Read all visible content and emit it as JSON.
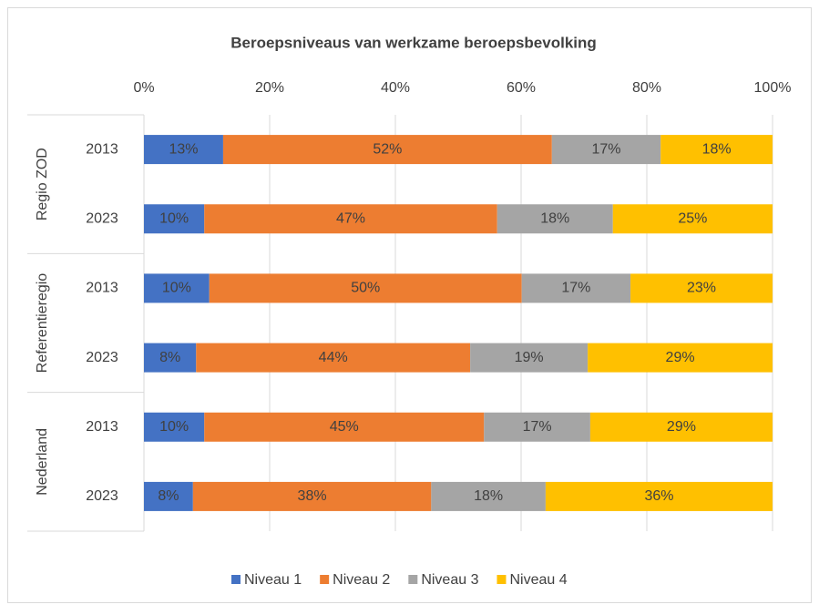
{
  "chart_data": {
    "type": "stacked_barh_percent",
    "title": "Beroepsniveaus van werkzame beroepsbevolking",
    "groups": [
      "Regio ZOD",
      "Referentieregio",
      "Nederland"
    ],
    "categories": [
      "2013",
      "2023",
      "2013",
      "2023",
      "2013",
      "2023"
    ],
    "series": [
      {
        "name": "Niveau 1",
        "color": "#4472c4",
        "values": [
          12.6,
          9.6,
          10.4,
          8.3,
          9.6,
          7.8
        ],
        "value_labels": [
          "13%",
          "10%",
          "10%",
          "8%",
          "10%",
          "8%"
        ]
      },
      {
        "name": "Niveau 2",
        "color": "#ed7d31",
        "values": [
          52.3,
          46.6,
          49.7,
          43.6,
          44.5,
          37.9
        ],
        "value_labels": [
          "52%",
          "47%",
          "50%",
          "44%",
          "45%",
          "38%"
        ]
      },
      {
        "name": "Niveau 3",
        "color": "#a5a5a5",
        "values": [
          17.3,
          18.4,
          17.3,
          18.7,
          16.9,
          18.2
        ],
        "value_labels": [
          "17%",
          "18%",
          "17%",
          "19%",
          "17%",
          "18%"
        ]
      },
      {
        "name": "Niveau 4",
        "color": "#ffc000",
        "values": [
          17.8,
          25.4,
          22.6,
          29.4,
          29.0,
          36.1
        ],
        "value_labels": [
          "18%",
          "25%",
          "23%",
          "29%",
          "29%",
          "36%"
        ]
      }
    ],
    "xlim": [
      0,
      100
    ],
    "xticks": [
      {
        "value": 0,
        "label": "0%"
      },
      {
        "value": 20,
        "label": "20%"
      },
      {
        "value": 40,
        "label": "40%"
      },
      {
        "value": 60,
        "label": "60%"
      },
      {
        "value": 80,
        "label": "80%"
      },
      {
        "value": 100,
        "label": "100%"
      }
    ],
    "grid": true,
    "legend": "bottom"
  }
}
